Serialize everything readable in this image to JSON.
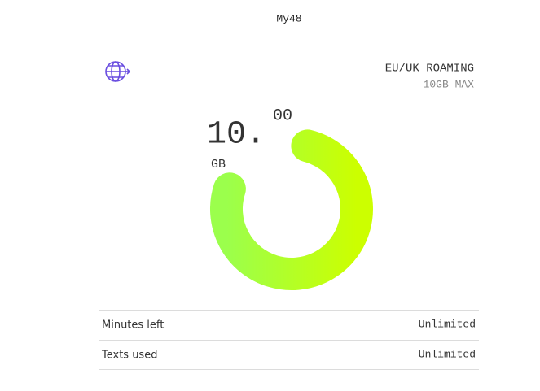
{
  "header": {
    "title": "My48"
  },
  "card": {
    "label": "EU/UK ROAMING",
    "sublabel": "10GB MAX"
  },
  "usage": {
    "whole": "10.",
    "decimal": "00",
    "unit": "GB"
  },
  "rows": [
    [
      "Minutes left",
      "Unlimited"
    ],
    [
      "Texts used",
      "Unlimited"
    ]
  ]
}
